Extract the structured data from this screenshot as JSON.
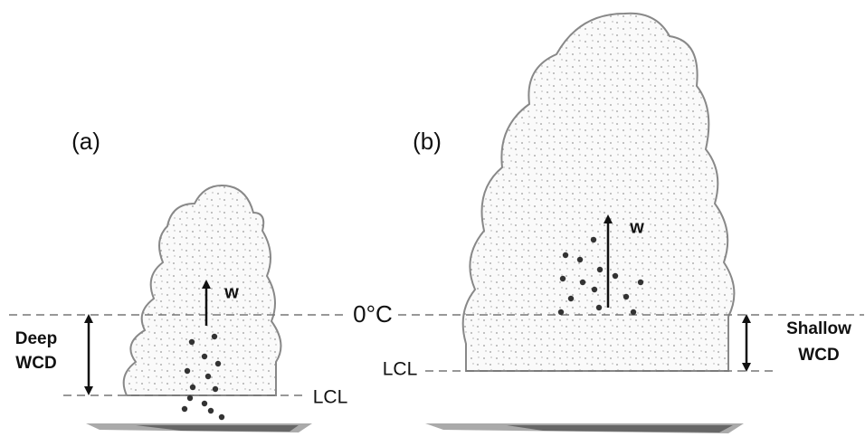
{
  "panels": [
    {
      "label": "(a)",
      "updraft": "w",
      "depth_label": [
        "Deep",
        "WCD"
      ],
      "base": "LCL"
    },
    {
      "label": "(b)",
      "updraft": "w",
      "depth_label": [
        "Shallow",
        "WCD"
      ],
      "base": "LCL"
    }
  ],
  "freezing_level": "0°C"
}
